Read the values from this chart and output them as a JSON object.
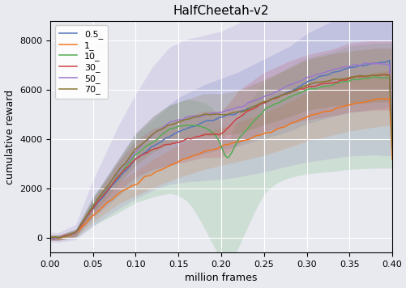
{
  "title": "HalfCheetah-v2",
  "xlabel": "million frames",
  "ylabel": "cumulative reward",
  "xlim": [
    0.0,
    0.4
  ],
  "ylim": [
    -600,
    8800
  ],
  "yticks": [
    0,
    2000,
    4000,
    6000,
    8000
  ],
  "xticks": [
    0.0,
    0.05,
    0.1,
    0.15,
    0.2,
    0.25,
    0.3,
    0.35,
    0.4
  ],
  "background_color": "#e8eaf0",
  "series": [
    {
      "label": "0.5_",
      "color": "#5577bb",
      "anchors": [
        [
          0.01,
          0
        ],
        [
          0.03,
          200
        ],
        [
          0.05,
          1200
        ],
        [
          0.08,
          2400
        ],
        [
          0.1,
          3200
        ],
        [
          0.12,
          3700
        ],
        [
          0.15,
          4300
        ],
        [
          0.18,
          4700
        ],
        [
          0.2,
          4900
        ],
        [
          0.22,
          5100
        ],
        [
          0.25,
          5500
        ],
        [
          0.28,
          5900
        ],
        [
          0.3,
          6300
        ],
        [
          0.33,
          6700
        ],
        [
          0.35,
          6900
        ],
        [
          0.38,
          7100
        ],
        [
          0.4,
          7200
        ]
      ],
      "spread_low": 0.25,
      "spread_high": 0.3,
      "alpha": 0.2
    },
    {
      "label": "1_",
      "color": "#ee7722",
      "anchors": [
        [
          0.01,
          0
        ],
        [
          0.03,
          150
        ],
        [
          0.05,
          900
        ],
        [
          0.08,
          1800
        ],
        [
          0.1,
          2200
        ],
        [
          0.12,
          2600
        ],
        [
          0.15,
          3100
        ],
        [
          0.18,
          3500
        ],
        [
          0.2,
          3700
        ],
        [
          0.22,
          3900
        ],
        [
          0.25,
          4200
        ],
        [
          0.28,
          4600
        ],
        [
          0.3,
          4900
        ],
        [
          0.33,
          5200
        ],
        [
          0.35,
          5400
        ],
        [
          0.38,
          5600
        ],
        [
          0.4,
          5700
        ]
      ],
      "spread_low": 0.18,
      "spread_high": 0.18,
      "alpha": 0.2
    },
    {
      "label": "10_",
      "color": "#55aa55",
      "anchors": [
        [
          0.01,
          0
        ],
        [
          0.03,
          200
        ],
        [
          0.05,
          1300
        ],
        [
          0.08,
          2500
        ],
        [
          0.1,
          3400
        ],
        [
          0.12,
          3900
        ],
        [
          0.14,
          4400
        ],
        [
          0.16,
          4600
        ],
        [
          0.18,
          4500
        ],
        [
          0.19,
          4300
        ],
        [
          0.2,
          3800
        ],
        [
          0.205,
          3200
        ],
        [
          0.21,
          3300
        ],
        [
          0.22,
          4000
        ],
        [
          0.25,
          5200
        ],
        [
          0.28,
          5700
        ],
        [
          0.3,
          6000
        ],
        [
          0.33,
          6200
        ],
        [
          0.35,
          6400
        ],
        [
          0.38,
          6500
        ],
        [
          0.4,
          6500
        ]
      ],
      "spread_low": 0.55,
      "spread_high": 0.2,
      "alpha": 0.18
    },
    {
      "label": "30_",
      "color": "#cc4444",
      "anchors": [
        [
          0.01,
          0
        ],
        [
          0.03,
          200
        ],
        [
          0.05,
          1200
        ],
        [
          0.08,
          2500
        ],
        [
          0.1,
          3200
        ],
        [
          0.12,
          3600
        ],
        [
          0.14,
          3800
        ],
        [
          0.16,
          4000
        ],
        [
          0.18,
          4200
        ],
        [
          0.2,
          4200
        ],
        [
          0.21,
          4500
        ],
        [
          0.22,
          4900
        ],
        [
          0.25,
          5500
        ],
        [
          0.28,
          5900
        ],
        [
          0.3,
          6100
        ],
        [
          0.33,
          6300
        ],
        [
          0.35,
          6500
        ],
        [
          0.38,
          6600
        ],
        [
          0.4,
          6600
        ]
      ],
      "spread_low": 0.2,
      "spread_high": 0.2,
      "alpha": 0.2
    },
    {
      "label": "50_",
      "color": "#9977cc",
      "anchors": [
        [
          0.01,
          0
        ],
        [
          0.03,
          200
        ],
        [
          0.05,
          1300
        ],
        [
          0.08,
          2700
        ],
        [
          0.1,
          3500
        ],
        [
          0.12,
          4200
        ],
        [
          0.14,
          4700
        ],
        [
          0.16,
          4900
        ],
        [
          0.18,
          5000
        ],
        [
          0.2,
          5100
        ],
        [
          0.22,
          5300
        ],
        [
          0.25,
          5700
        ],
        [
          0.28,
          6200
        ],
        [
          0.3,
          6500
        ],
        [
          0.33,
          6800
        ],
        [
          0.35,
          7000
        ],
        [
          0.38,
          7100
        ],
        [
          0.4,
          7000
        ]
      ],
      "spread_low": 0.55,
      "spread_high": 0.55,
      "alpha": 0.18
    },
    {
      "label": "70_",
      "color": "#887733",
      "anchors": [
        [
          0.01,
          0
        ],
        [
          0.03,
          200
        ],
        [
          0.05,
          1300
        ],
        [
          0.08,
          2700
        ],
        [
          0.1,
          3600
        ],
        [
          0.12,
          4200
        ],
        [
          0.14,
          4600
        ],
        [
          0.16,
          4800
        ],
        [
          0.18,
          5000
        ],
        [
          0.2,
          5000
        ],
        [
          0.22,
          5100
        ],
        [
          0.25,
          5500
        ],
        [
          0.28,
          5900
        ],
        [
          0.3,
          6200
        ],
        [
          0.33,
          6400
        ],
        [
          0.35,
          6500
        ],
        [
          0.38,
          6600
        ],
        [
          0.4,
          6600
        ]
      ],
      "spread_low": 0.15,
      "spread_high": 0.15,
      "alpha": 0.2
    }
  ]
}
